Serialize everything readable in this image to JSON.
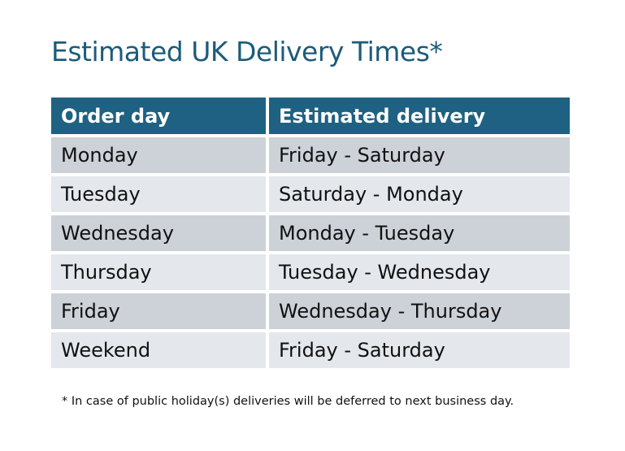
{
  "title": "Estimated UK Delivery Times*",
  "table": {
    "headers": [
      "Order day",
      "Estimated delivery"
    ],
    "rows": [
      [
        "Monday",
        "Friday - Saturday"
      ],
      [
        "Tuesday",
        "Saturday - Monday"
      ],
      [
        "Wednesday",
        "Monday - Tuesday"
      ],
      [
        "Thursday",
        "Tuesday - Wednesday"
      ],
      [
        "Friday",
        "Wednesday - Thursday"
      ],
      [
        "Weekend",
        "Friday - Saturday"
      ]
    ]
  },
  "footnote": "* In case of public holiday(s) deliveries will be deferred to next business day.",
  "colors": {
    "header": "#1f6182",
    "title": "#1d5b7a",
    "row_odd": "#cdd1d8",
    "row_even": "#e4e7eb"
  }
}
